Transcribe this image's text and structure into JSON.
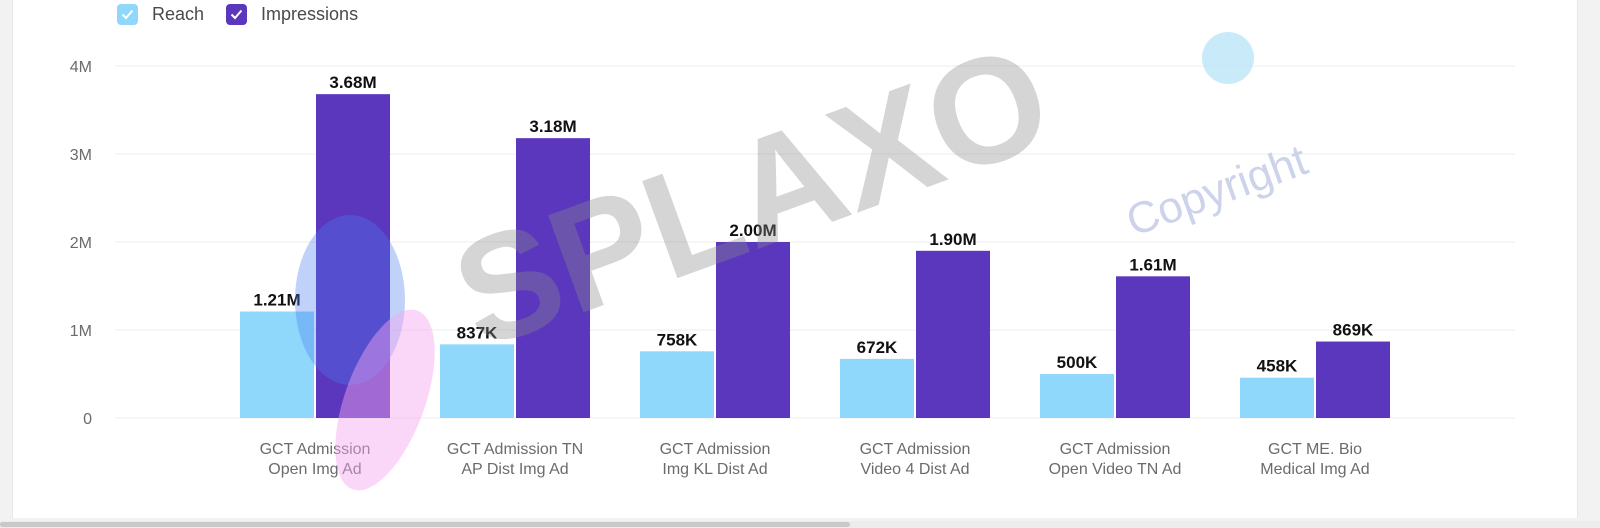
{
  "colors": {
    "reach": "#8fd8fb",
    "impressions": "#5b37bd",
    "grid": "#ececec",
    "axis_text": "#6b6b6b",
    "label_text": "#111111"
  },
  "legend": [
    {
      "label": "Reach",
      "icon": "check-icon",
      "color": "#8fd8fb"
    },
    {
      "label": "Impressions",
      "icon": "check-icon",
      "color": "#5b37bd"
    }
  ],
  "watermark": {
    "brand": "SPLAXO",
    "copyright": "Copyright"
  },
  "chart_data": {
    "type": "bar",
    "categories": [
      [
        "GCT Admission",
        "Open Img Ad"
      ],
      [
        "GCT Admission TN",
        "AP Dist Img Ad"
      ],
      [
        "GCT Admission",
        "Img KL Dist Ad"
      ],
      [
        "GCT Admission",
        "Video 4 Dist Ad"
      ],
      [
        "GCT Admission",
        "Open Video TN Ad"
      ],
      [
        "GCT ME. Bio",
        "Medical Img Ad"
      ]
    ],
    "series": [
      {
        "name": "Reach",
        "values": [
          1210000,
          837000,
          758000,
          672000,
          500000,
          458000
        ],
        "labels": [
          "1.21M",
          "837K",
          "758K",
          "672K",
          "500K",
          "458K"
        ]
      },
      {
        "name": "Impressions",
        "values": [
          3680000,
          3180000,
          2000000,
          1900000,
          1610000,
          869000
        ],
        "labels": [
          "3.68M",
          "3.18M",
          "2.00M",
          "1.90M",
          "1.61M",
          "869K"
        ]
      }
    ],
    "ylim": [
      0,
      4000000
    ],
    "yticks": [
      {
        "value": 0,
        "label": "0"
      },
      {
        "value": 1000000,
        "label": "1M"
      },
      {
        "value": 2000000,
        "label": "2M"
      },
      {
        "value": 3000000,
        "label": "3M"
      },
      {
        "value": 4000000,
        "label": "4M"
      }
    ],
    "grid": true,
    "legend_position": "top-left"
  }
}
